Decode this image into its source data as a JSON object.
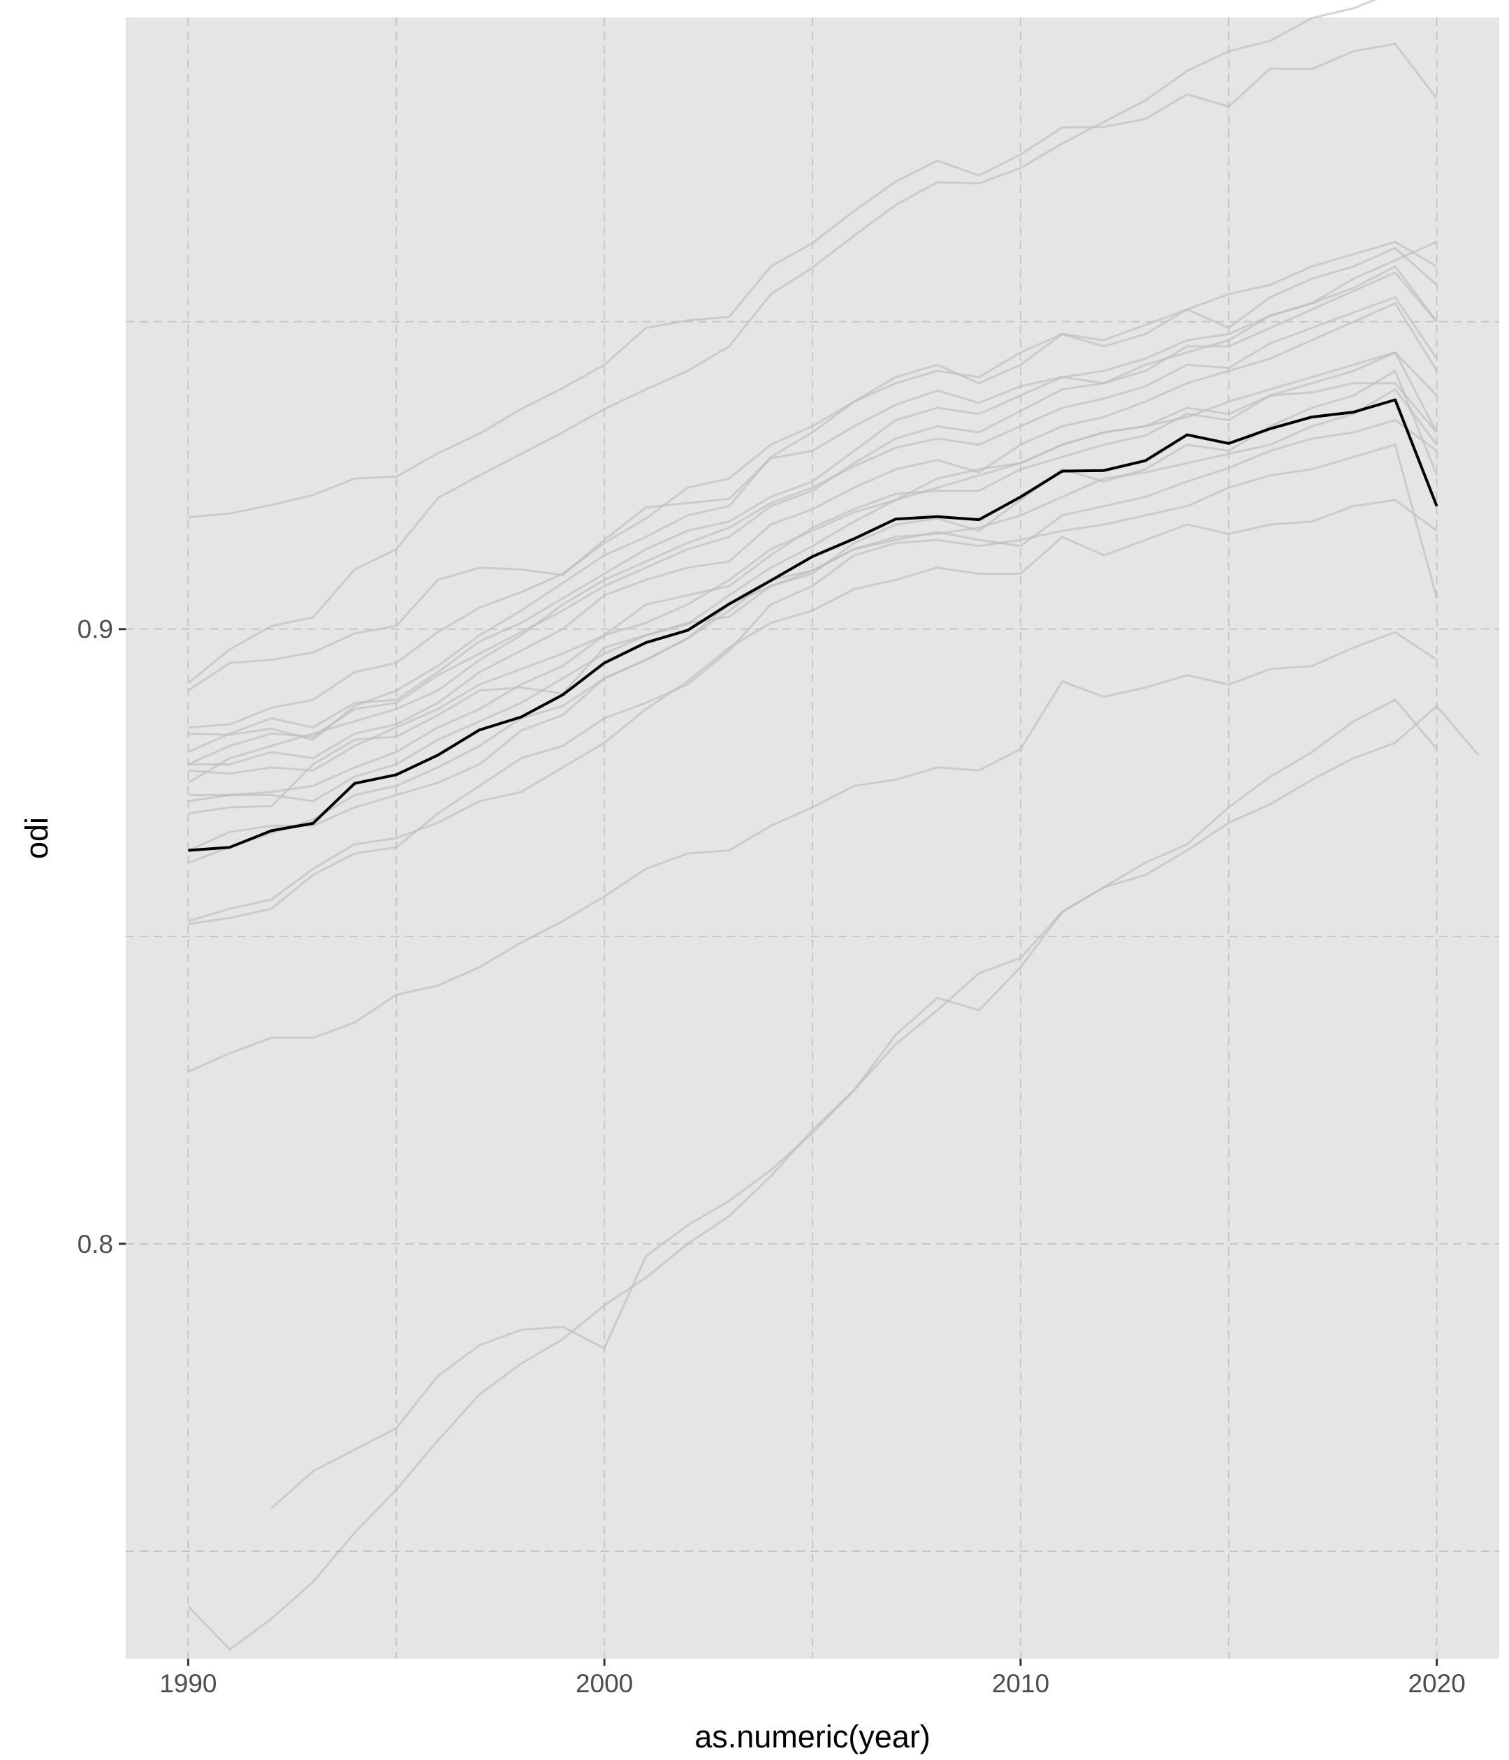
{
  "chart_data": {
    "type": "line",
    "xlabel": "as.numeric(year)",
    "ylabel": "odi",
    "xlim": [
      1988.5,
      2021.5
    ],
    "ylim": [
      0.7325,
      0.9995
    ],
    "x_ticks": [
      1990,
      2000,
      2010,
      2020
    ],
    "x_tick_labels": [
      "1990",
      "2000",
      "2010",
      "2020"
    ],
    "x_minor_ticks": [
      1995,
      2005,
      2015
    ],
    "y_ticks": [
      0.8,
      0.9
    ],
    "y_tick_labels": [
      "0.8",
      "0.9"
    ],
    "y_minor_ticks": [
      0.75,
      0.85,
      0.95
    ],
    "grid": true,
    "grid_style": "dashed",
    "colors": {
      "panel_background": "#e5e5e5",
      "grid": "#c6c6c6",
      "highlight_series": "#000000",
      "background_series": "#bdbdbd"
    },
    "highlight": {
      "start": 1990,
      "values": [
        0.864,
        0.8645,
        0.8672,
        0.8684,
        0.8749,
        0.8763,
        0.8795,
        0.8836,
        0.8857,
        0.8893,
        0.8945,
        0.8978,
        0.8998,
        0.9041,
        0.9079,
        0.9118,
        0.9147,
        0.9179,
        0.9183,
        0.9178,
        0.9215,
        0.9257,
        0.9258,
        0.9274,
        0.9316,
        0.9302,
        0.9326,
        0.9345,
        0.9353,
        0.9373,
        0.92
      ]
    },
    "series": [
      {
        "start": 1990,
        "values": [
          0.9182,
          0.9188,
          0.9202,
          0.9218,
          0.9245,
          0.9248,
          0.9286,
          0.9318,
          0.9358,
          0.9392,
          0.943,
          0.949,
          0.9502,
          0.9508,
          0.959,
          0.9628,
          0.968,
          0.9728,
          0.9762,
          0.9738,
          0.9772,
          0.9816,
          0.9817,
          0.983,
          0.987,
          0.985,
          0.9912,
          0.9911,
          0.994,
          0.9952,
          0.9863
        ]
      },
      {
        "start": 1990,
        "values": [
          0.8912,
          0.8967,
          0.9005,
          0.9019,
          0.9097,
          0.913,
          0.9213,
          0.925,
          0.9285,
          0.932,
          0.9358,
          0.939,
          0.942,
          0.946,
          0.9545,
          0.9588,
          0.964,
          0.969,
          0.9727,
          0.9725,
          0.975,
          0.979,
          0.9825,
          0.986,
          0.9908,
          0.994,
          0.9957,
          0.9994,
          1.001,
          1.0037,
          1.004
        ]
      },
      {
        "start": 1990,
        "values": [
          0.89,
          0.8945,
          0.895,
          0.8962,
          0.8993,
          0.9005,
          0.908,
          0.91,
          0.9097,
          0.9088,
          0.9145,
          0.9198,
          0.9205,
          0.9212,
          0.9278,
          0.929,
          0.933,
          0.9365,
          0.9388,
          0.9368,
          0.9395,
          0.941,
          0.94,
          0.943,
          0.945,
          0.947,
          0.951,
          0.953,
          0.9555,
          0.959,
          0.95
        ]
      },
      {
        "start": 1990,
        "values": [
          0.884,
          0.8845,
          0.8872,
          0.8885,
          0.893,
          0.8945,
          0.8995,
          0.9035,
          0.906,
          0.909,
          0.914,
          0.918,
          0.923,
          0.9245,
          0.93,
          0.933,
          0.937,
          0.94,
          0.942,
          0.941,
          0.945,
          0.948,
          0.947,
          0.9495,
          0.952,
          0.9545,
          0.956,
          0.959,
          0.961,
          0.963,
          0.959
        ]
      },
      {
        "start": 1990,
        "values": [
          0.883,
          0.8828,
          0.8838,
          0.882,
          0.8875,
          0.89,
          0.894,
          0.899,
          0.903,
          0.9075,
          0.912,
          0.915,
          0.9185,
          0.92,
          0.928,
          0.932,
          0.937,
          0.941,
          0.943,
          0.94,
          0.943,
          0.948,
          0.946,
          0.948,
          0.952,
          0.949,
          0.954,
          0.957,
          0.959,
          0.962,
          0.956
        ]
      },
      {
        "start": 1990,
        "values": [
          0.88,
          0.883,
          0.8855,
          0.884,
          0.888,
          0.8885,
          0.893,
          0.898,
          0.901,
          0.905,
          0.909,
          0.913,
          0.916,
          0.9175,
          0.9215,
          0.924,
          0.929,
          0.934,
          0.936,
          0.935,
          0.938,
          0.941,
          0.942,
          0.944,
          0.947,
          0.948,
          0.951,
          0.953,
          0.957,
          0.96,
          0.963
        ]
      },
      {
        "start": 1990,
        "values": [
          0.878,
          0.881,
          0.883,
          0.8825,
          0.887,
          0.888,
          0.8925,
          0.896,
          0.8995,
          0.903,
          0.907,
          0.91,
          0.913,
          0.915,
          0.92,
          0.9225,
          0.927,
          0.931,
          0.933,
          0.932,
          0.9355,
          0.939,
          0.94,
          0.942,
          0.946,
          0.946,
          0.949,
          0.952,
          0.955,
          0.958,
          0.95
        ]
      },
      {
        "start": 1990,
        "values": [
          0.875,
          0.879,
          0.881,
          0.883,
          0.885,
          0.887,
          0.89,
          0.895,
          0.899,
          0.904,
          0.908,
          0.911,
          0.914,
          0.9165,
          0.9205,
          0.923,
          0.9265,
          0.9295,
          0.931,
          0.93,
          0.933,
          0.936,
          0.9375,
          0.9395,
          0.943,
          0.9425,
          0.9465,
          0.949,
          0.9515,
          0.954,
          0.944
        ]
      },
      {
        "start": 1990,
        "values": [
          0.878,
          0.878,
          0.88,
          0.879,
          0.883,
          0.8845,
          0.888,
          0.893,
          0.8965,
          0.9,
          0.9055,
          0.908,
          0.91,
          0.911,
          0.917,
          0.9195,
          0.923,
          0.926,
          0.9275,
          0.9255,
          0.93,
          0.933,
          0.9345,
          0.937,
          0.94,
          0.942,
          0.944,
          0.947,
          0.95,
          0.953,
          0.942
        ]
      },
      {
        "start": 1990,
        "values": [
          0.877,
          0.8765,
          0.8775,
          0.877,
          0.881,
          0.884,
          0.887,
          0.891,
          0.8935,
          0.896,
          0.899,
          0.904,
          0.9055,
          0.907,
          0.912,
          0.9165,
          0.9195,
          0.922,
          0.9225,
          0.9225,
          0.926,
          0.928,
          0.93,
          0.9315,
          0.935,
          0.934,
          0.938,
          0.94,
          0.942,
          0.945,
          0.938
        ]
      },
      {
        "start": 1990,
        "values": [
          0.872,
          0.873,
          0.8735,
          0.8745,
          0.8775,
          0.88,
          0.884,
          0.887,
          0.891,
          0.894,
          0.899,
          0.901,
          0.904,
          0.908,
          0.913,
          0.916,
          0.919,
          0.921,
          0.923,
          0.925,
          0.927,
          0.93,
          0.932,
          0.933,
          0.9345,
          0.937,
          0.939,
          0.941,
          0.943,
          0.945,
          0.932
        ]
      },
      {
        "start": 1990,
        "values": [
          0.873,
          0.873,
          0.873,
          0.872,
          0.876,
          0.878,
          0.882,
          0.885,
          0.888,
          0.892,
          0.896,
          0.899,
          0.901,
          0.902,
          0.907,
          0.909,
          0.914,
          0.917,
          0.918,
          0.916,
          0.921,
          0.926,
          0.924,
          0.926,
          0.93,
          0.929,
          0.933,
          0.936,
          0.938,
          0.942,
          0.925
        ]
      },
      {
        "start": 1990,
        "values": [
          0.87,
          0.871,
          0.8712,
          0.878,
          0.882,
          0.8825,
          0.886,
          0.89,
          0.8905,
          0.8895,
          0.897,
          0.899,
          0.9008,
          0.9055,
          0.91,
          0.9135,
          0.9175,
          0.921,
          0.9245,
          0.926,
          0.927,
          0.93,
          0.932,
          0.933,
          0.936,
          0.935,
          0.938,
          0.9385,
          0.94,
          0.94,
          0.932
        ]
      },
      {
        "start": 1990,
        "values": [
          0.862,
          0.8645,
          0.8668,
          0.869,
          0.873,
          0.8745,
          0.8775,
          0.881,
          0.8855,
          0.8875,
          0.892,
          0.895,
          0.8985,
          0.904,
          0.907,
          0.9095,
          0.913,
          0.915,
          0.9155,
          0.9165,
          0.9185,
          0.9215,
          0.9245,
          0.9255,
          0.927,
          0.9285,
          0.93,
          0.933,
          0.935,
          0.939,
          0.93
        ]
      },
      {
        "start": 1990,
        "values": [
          0.864,
          0.867,
          0.868,
          0.868,
          0.871,
          0.873,
          0.875,
          0.878,
          0.8835,
          0.886,
          0.892,
          0.895,
          0.8985,
          0.903,
          0.908,
          0.9095,
          0.913,
          0.9145,
          0.9158,
          0.9145,
          0.9135,
          0.9185,
          0.92,
          0.9215,
          0.924,
          0.9262,
          0.929,
          0.931,
          0.932,
          0.934,
          0.929
        ]
      },
      {
        "start": 1990,
        "values": [
          0.8525,
          0.8545,
          0.856,
          0.861,
          0.865,
          0.866,
          0.8685,
          0.872,
          0.8735,
          0.8775,
          0.8815,
          0.887,
          0.8915,
          0.897,
          0.901,
          0.903,
          0.9065,
          0.908,
          0.91,
          0.909,
          0.909,
          0.915,
          0.912,
          0.9145,
          0.917,
          0.9155,
          0.917,
          0.9175,
          0.92,
          0.921,
          0.916
        ]
      },
      {
        "start": 1990,
        "values": [
          0.852,
          0.853,
          0.8545,
          0.86,
          0.8635,
          0.8645,
          0.87,
          0.8745,
          0.879,
          0.881,
          0.8855,
          0.888,
          0.891,
          0.8965,
          0.904,
          0.907,
          0.912,
          0.914,
          0.9145,
          0.9135,
          0.9145,
          0.916,
          0.917,
          0.9185,
          0.92,
          0.923,
          0.925,
          0.926,
          0.928,
          0.93,
          0.905
        ]
      },
      {
        "start": 1990,
        "values": [
          0.828,
          0.831,
          0.8335,
          0.8335,
          0.836,
          0.8405,
          0.842,
          0.845,
          0.849,
          0.8525,
          0.8565,
          0.861,
          0.8635,
          0.864,
          0.868,
          0.871,
          0.8745,
          0.8755,
          0.8775,
          0.877,
          0.8805,
          0.8915,
          0.889,
          0.8905,
          0.8925,
          0.891,
          0.8935,
          0.894,
          0.897,
          0.8995,
          0.895
        ]
      },
      {
        "start": 1992,
        "values": [
          0.757,
          0.763,
          0.7665,
          0.77,
          0.7785,
          0.7835,
          0.786,
          0.7865,
          0.783,
          0.798,
          0.803,
          0.807,
          0.812,
          0.818,
          0.825,
          0.8325,
          0.838,
          0.844,
          0.8465,
          0.854,
          0.858,
          0.86,
          0.864,
          0.8685,
          0.8715,
          0.8755,
          0.879,
          0.8815,
          0.8875,
          0.8795
        ]
      },
      {
        "start": 1990,
        "values": [
          0.741,
          0.734,
          0.739,
          0.745,
          0.753,
          0.76,
          0.768,
          0.7755,
          0.7805,
          0.7845,
          0.79,
          0.7945,
          0.8,
          0.8045,
          0.811,
          0.8185,
          0.825,
          0.834,
          0.84,
          0.838,
          0.845,
          0.854,
          0.858,
          0.862,
          0.865,
          0.871,
          0.876,
          0.88,
          0.885,
          0.8885,
          0.8805
        ]
      }
    ]
  }
}
